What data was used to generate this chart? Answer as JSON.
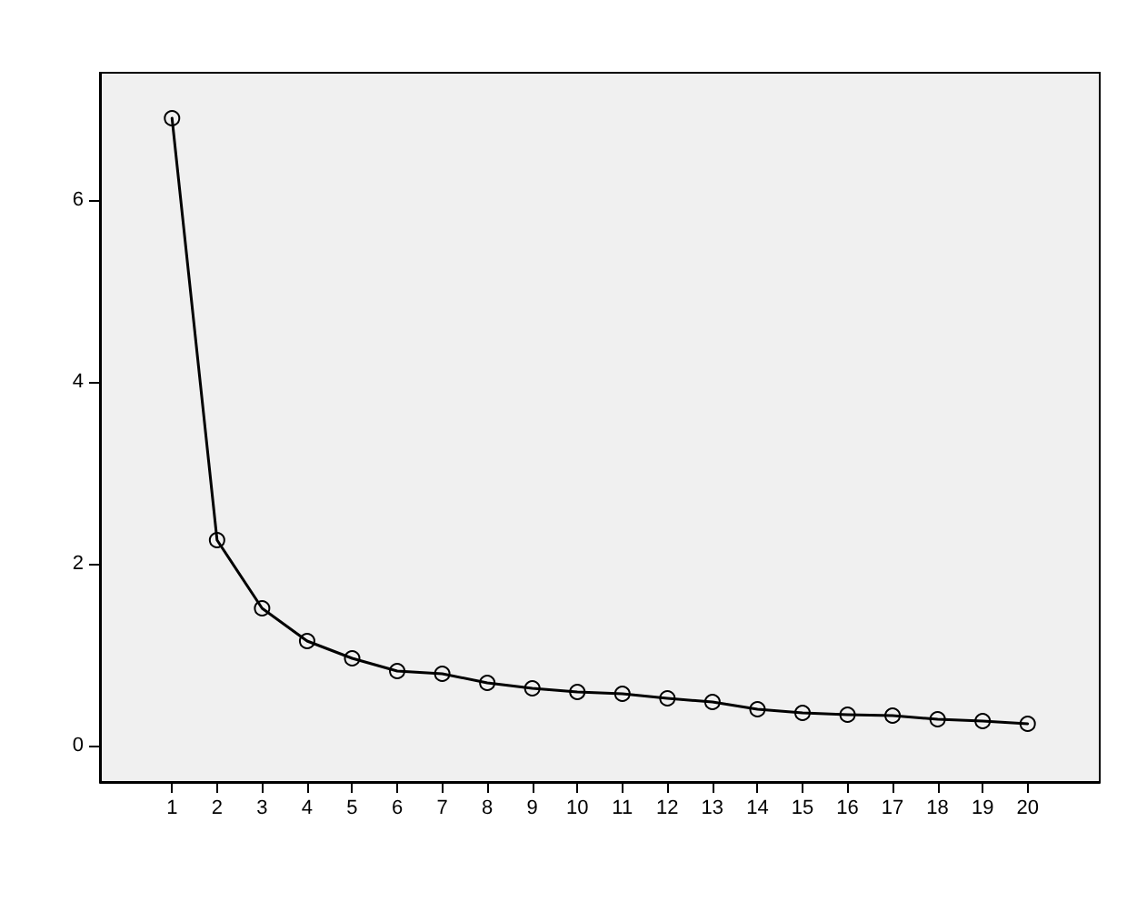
{
  "chart_data": {
    "type": "line",
    "x": [
      1,
      2,
      3,
      4,
      5,
      6,
      7,
      8,
      9,
      10,
      11,
      12,
      13,
      14,
      15,
      16,
      17,
      18,
      19,
      20
    ],
    "series": [
      {
        "color": "#000000",
        "values": [
          6.9,
          2.26,
          1.51,
          1.15,
          0.96,
          0.82,
          0.79,
          0.69,
          0.63,
          0.59,
          0.57,
          0.52,
          0.48,
          0.4,
          0.36,
          0.34,
          0.33,
          0.29,
          0.27,
          0.24
        ]
      }
    ],
    "xlim": [
      -0.6,
      21.6
    ],
    "xticks": [
      1,
      2,
      3,
      4,
      5,
      6,
      7,
      8,
      9,
      10,
      11,
      12,
      13,
      14,
      15,
      16,
      17,
      18,
      19,
      20
    ],
    "ylim": [
      -0.4,
      7.4
    ],
    "yticks": [
      0,
      2,
      4,
      6
    ],
    "marker": "circle",
    "line_style": "solid"
  }
}
